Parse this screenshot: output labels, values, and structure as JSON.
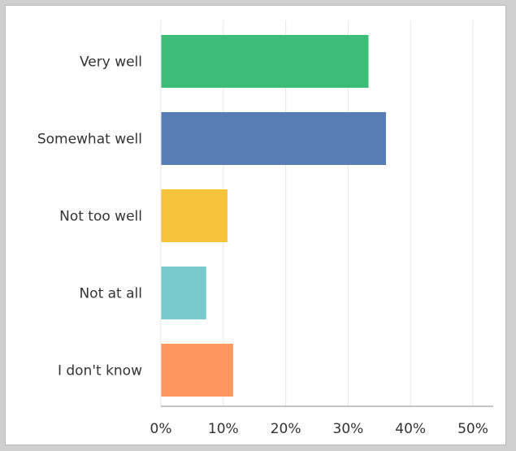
{
  "chart_data": {
    "type": "bar",
    "orientation": "horizontal",
    "categories": [
      "Very well",
      "Somewhat well",
      "Not too well",
      "Not at all",
      "I don't know"
    ],
    "values": [
      33.2,
      36.0,
      10.6,
      7.2,
      11.5
    ],
    "colors": [
      "#3DBE78",
      "#577DB4",
      "#F8C23A",
      "#78C8CC",
      "#FF955F"
    ],
    "title": "",
    "xlabel": "",
    "ylabel": "",
    "xlim": [
      0,
      50
    ],
    "ticks": [
      0,
      10,
      20,
      30,
      40,
      50
    ],
    "tick_labels": [
      "0%",
      "10%",
      "20%",
      "30%",
      "40%",
      "50%"
    ],
    "grid": true,
    "legend": "none"
  }
}
